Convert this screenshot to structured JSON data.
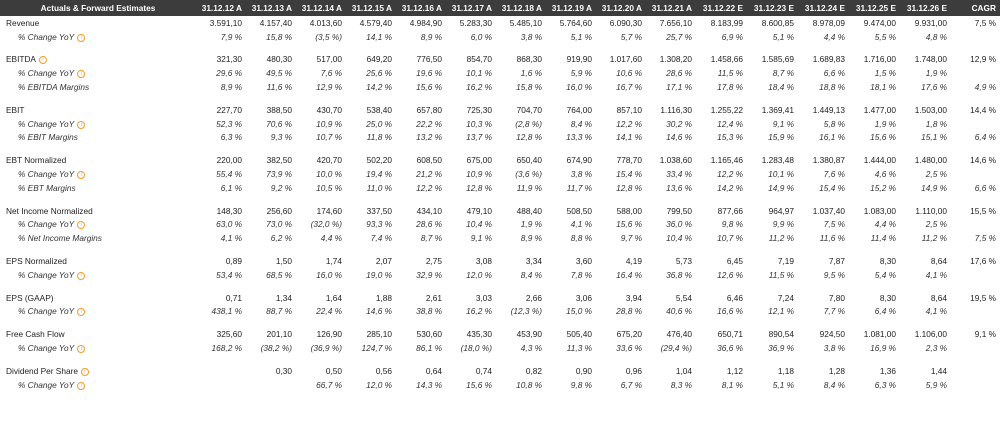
{
  "header": {
    "title": "Actuals & Forward Estimates",
    "columns": [
      "31.12.12 A",
      "31.12.13 A",
      "31.12.14 A",
      "31.12.15 A",
      "31.12.16 A",
      "31.12.17 A",
      "31.12.18 A",
      "31.12.19 A",
      "31.12.20 A",
      "31.12.21 A",
      "31.12.22 E",
      "31.12.23 E",
      "31.12.24 E",
      "31.12.25 E",
      "31.12.26 E",
      "CAGR"
    ]
  },
  "icons": {
    "info": "info-circle-icon",
    "info_color": "#f39a2b"
  },
  "colors": {
    "header_bg": "#3c3c3c",
    "negative": "#e0403a"
  },
  "rows": [
    {
      "label": "Revenue",
      "type": "main",
      "info": false,
      "values": [
        "3.591,10",
        "4.157,40",
        "4.013,60",
        "4.579,40",
        "4.984,90",
        "5.283,30",
        "5.485,10",
        "5.764,60",
        "6.090,30",
        "7.656,10",
        "8.183,99",
        "8.600,85",
        "8.978,09",
        "9.474,00",
        "9.931,00",
        "7,5 %"
      ]
    },
    {
      "label": "% Change YoY",
      "type": "sub",
      "info": true,
      "values": [
        "7,9 %",
        "15,8 %",
        "(3,5 %)",
        "14,1 %",
        "8,9 %",
        "6,0 %",
        "3,8 %",
        "5,1 %",
        "5,7 %",
        "25,7 %",
        "6,9 %",
        "5,1 %",
        "4,4 %",
        "5,5 %",
        "4,8 %",
        ""
      ]
    },
    {
      "type": "gap"
    },
    {
      "label": "EBITDA",
      "type": "main",
      "info": true,
      "values": [
        "321,30",
        "480,30",
        "517,00",
        "649,20",
        "776,50",
        "854,70",
        "868,30",
        "919,90",
        "1.017,60",
        "1.308,20",
        "1.458,66",
        "1.585,69",
        "1.689,83",
        "1.716,00",
        "1.748,00",
        "12,9 %"
      ]
    },
    {
      "label": "% Change YoY",
      "type": "sub",
      "info": true,
      "values": [
        "29,6 %",
        "49,5 %",
        "7,6 %",
        "25,6 %",
        "19,6 %",
        "10,1 %",
        "1,6 %",
        "5,9 %",
        "10,6 %",
        "28,6 %",
        "11,5 %",
        "8,7 %",
        "6,6 %",
        "1,5 %",
        "1,9 %",
        ""
      ]
    },
    {
      "label": "% EBITDA Margins",
      "type": "sub",
      "info": false,
      "values": [
        "8,9 %",
        "11,6 %",
        "12,9 %",
        "14,2 %",
        "15,6 %",
        "16,2 %",
        "15,8 %",
        "16,0 %",
        "16,7 %",
        "17,1 %",
        "17,8 %",
        "18,4 %",
        "18,8 %",
        "18,1 %",
        "17,6 %",
        "4,9 %"
      ]
    },
    {
      "type": "gap"
    },
    {
      "label": "EBIT",
      "type": "main",
      "info": false,
      "values": [
        "227,70",
        "388,50",
        "430,70",
        "538,40",
        "657,80",
        "725,30",
        "704,70",
        "764,00",
        "857,10",
        "1.116,30",
        "1.255,22",
        "1.369,41",
        "1.449,13",
        "1.477,00",
        "1.503,00",
        "14,4 %"
      ]
    },
    {
      "label": "% Change YoY",
      "type": "sub",
      "info": true,
      "values": [
        "52,3 %",
        "70,6 %",
        "10,9 %",
        "25,0 %",
        "22,2 %",
        "10,3 %",
        "(2,8 %)",
        "8,4 %",
        "12,2 %",
        "30,2 %",
        "12,4 %",
        "9,1 %",
        "5,8 %",
        "1,9 %",
        "1,8 %",
        ""
      ]
    },
    {
      "label": "% EBIT Margins",
      "type": "sub",
      "info": false,
      "values": [
        "6,3 %",
        "9,3 %",
        "10,7 %",
        "11,8 %",
        "13,2 %",
        "13,7 %",
        "12,8 %",
        "13,3 %",
        "14,1 %",
        "14,6 %",
        "15,3 %",
        "15,9 %",
        "16,1 %",
        "15,6 %",
        "15,1 %",
        "6,4 %"
      ]
    },
    {
      "type": "gap"
    },
    {
      "label": "EBT Normalized",
      "type": "main",
      "info": false,
      "values": [
        "220,00",
        "382,50",
        "420,70",
        "502,20",
        "608,50",
        "675,00",
        "650,40",
        "674,90",
        "778,70",
        "1.038,60",
        "1.165,46",
        "1.283,48",
        "1.380,87",
        "1.444,00",
        "1.480,00",
        "14,6 %"
      ]
    },
    {
      "label": "% Change YoY",
      "type": "sub",
      "info": true,
      "values": [
        "55,4 %",
        "73,9 %",
        "10,0 %",
        "19,4 %",
        "21,2 %",
        "10,9 %",
        "(3,6 %)",
        "3,8 %",
        "15,4 %",
        "33,4 %",
        "12,2 %",
        "10,1 %",
        "7,6 %",
        "4,6 %",
        "2,5 %",
        ""
      ]
    },
    {
      "label": "% EBT Margins",
      "type": "sub",
      "info": false,
      "values": [
        "6,1 %",
        "9,2 %",
        "10,5 %",
        "11,0 %",
        "12,2 %",
        "12,8 %",
        "11,9 %",
        "11,7 %",
        "12,8 %",
        "13,6 %",
        "14,2 %",
        "14,9 %",
        "15,4 %",
        "15,2 %",
        "14,9 %",
        "6,6 %"
      ]
    },
    {
      "type": "gap"
    },
    {
      "label": "Net Income Normalized",
      "type": "main",
      "info": false,
      "values": [
        "148,30",
        "256,60",
        "174,60",
        "337,50",
        "434,10",
        "479,10",
        "488,40",
        "508,50",
        "588,00",
        "799,50",
        "877,66",
        "964,97",
        "1.037,40",
        "1.083,00",
        "1.110,00",
        "15,5 %"
      ]
    },
    {
      "label": "% Change YoY",
      "type": "sub",
      "info": true,
      "values": [
        "63,0 %",
        "73,0 %",
        "(32,0 %)",
        "93,3 %",
        "28,6 %",
        "10,4 %",
        "1,9 %",
        "4,1 %",
        "15,6 %",
        "36,0 %",
        "9,8 %",
        "9,9 %",
        "7,5 %",
        "4,4 %",
        "2,5 %",
        ""
      ]
    },
    {
      "label": "% Net Income Margins",
      "type": "sub",
      "info": false,
      "values": [
        "4,1 %",
        "6,2 %",
        "4,4 %",
        "7,4 %",
        "8,7 %",
        "9,1 %",
        "8,9 %",
        "8,8 %",
        "9,7 %",
        "10,4 %",
        "10,7 %",
        "11,2 %",
        "11,6 %",
        "11,4 %",
        "11,2 %",
        "7,5 %"
      ]
    },
    {
      "type": "gap"
    },
    {
      "label": "EPS Normalized",
      "type": "main",
      "info": false,
      "values": [
        "0,89",
        "1,50",
        "1,74",
        "2,07",
        "2,75",
        "3,08",
        "3,34",
        "3,60",
        "4,19",
        "5,73",
        "6,45",
        "7,19",
        "7,87",
        "8,30",
        "8,64",
        "17,6 %"
      ]
    },
    {
      "label": "% Change YoY",
      "type": "sub",
      "info": true,
      "values": [
        "53,4 %",
        "68,5 %",
        "16,0 %",
        "19,0 %",
        "32,9 %",
        "12,0 %",
        "8,4 %",
        "7,8 %",
        "16,4 %",
        "36,8 %",
        "12,6 %",
        "11,5 %",
        "9,5 %",
        "5,4 %",
        "4,1 %",
        ""
      ]
    },
    {
      "type": "gap"
    },
    {
      "label": "EPS (GAAP)",
      "type": "main",
      "info": false,
      "values": [
        "0,71",
        "1,34",
        "1,64",
        "1,88",
        "2,61",
        "3,03",
        "2,66",
        "3,06",
        "3,94",
        "5,54",
        "6,46",
        "7,24",
        "7,80",
        "8,30",
        "8,64",
        "19,5 %"
      ]
    },
    {
      "label": "% Change YoY",
      "type": "sub",
      "info": true,
      "values": [
        "438,1 %",
        "88,7 %",
        "22,4 %",
        "14,6 %",
        "38,8 %",
        "16,2 %",
        "(12,3 %)",
        "15,0 %",
        "28,8 %",
        "40,6 %",
        "16,6 %",
        "12,1 %",
        "7,7 %",
        "6,4 %",
        "4,1 %",
        ""
      ]
    },
    {
      "type": "gap"
    },
    {
      "label": "Free Cash Flow",
      "type": "main",
      "info": false,
      "values": [
        "325,60",
        "201,10",
        "126,90",
        "285,10",
        "530,60",
        "435,30",
        "453,90",
        "505,40",
        "675,20",
        "476,40",
        "650,71",
        "890,54",
        "924,50",
        "1.081,00",
        "1.106,00",
        "9,1 %"
      ]
    },
    {
      "label": "% Change YoY",
      "type": "sub",
      "info": true,
      "values": [
        "168,2 %",
        "(38,2 %)",
        "(36,9 %)",
        "124,7 %",
        "86,1 %",
        "(18,0 %)",
        "4,3 %",
        "11,3 %",
        "33,6 %",
        "(29,4 %)",
        "36,6 %",
        "36,9 %",
        "3,8 %",
        "16,9 %",
        "2,3 %",
        ""
      ]
    },
    {
      "type": "gap"
    },
    {
      "label": "Dividend Per Share",
      "type": "main",
      "info": true,
      "values": [
        "",
        "0,30",
        "0,50",
        "0,56",
        "0,64",
        "0,74",
        "0,82",
        "0,90",
        "0,96",
        "1,04",
        "1,12",
        "1,18",
        "1,28",
        "1,36",
        "1,44",
        ""
      ]
    },
    {
      "label": "% Change YoY",
      "type": "sub",
      "info": true,
      "values": [
        "",
        "",
        "66,7 %",
        "12,0 %",
        "14,3 %",
        "15,6 %",
        "10,8 %",
        "9,8 %",
        "6,7 %",
        "8,3 %",
        "8,1 %",
        "5,1 %",
        "8,4 %",
        "6,3 %",
        "5,9 %",
        ""
      ]
    }
  ]
}
